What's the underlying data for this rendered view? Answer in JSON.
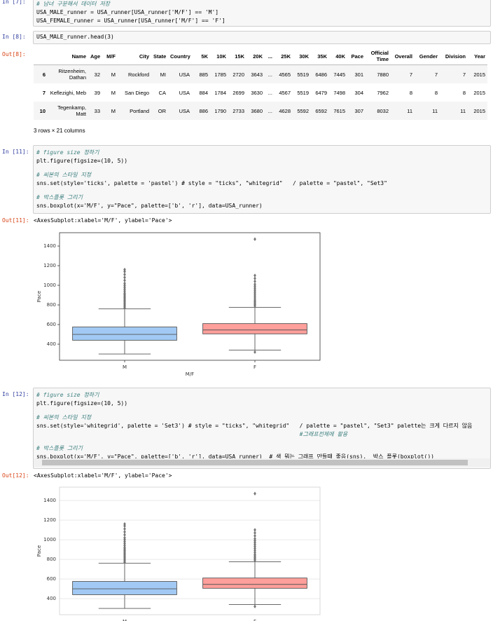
{
  "cells": [
    {
      "prompt": "In [7]:",
      "code": [
        [
          "# 남녀 구분해서 데이터 저장",
          "USA_MALE_runner = USA_runner[USA_runner['M/F'] == 'M']",
          "USA_FEMALE_runner = USA_runner[USA_runner['M/F'] == 'F']"
        ]
      ]
    },
    {
      "prompt": "In [8]:",
      "code": [
        [
          "USA_MALE_runner.head(3)"
        ]
      ],
      "out_prompt": "Out[8]:"
    },
    {
      "prompt": "In [11]:",
      "code": [
        [
          "# figure size 정하기",
          "plt.figure(figsize=(10, 5))"
        ],
        [
          "# 씨본의 스타일 지정",
          "sns.set(style='ticks', palette = 'pastel') # style = \"ticks\", \"whitegrid\"   / palette = \"pastel\", \"Set3\""
        ],
        [
          "# 박스플롯 그리기",
          "sns.boxplot(x='M/F', y=\"Pace\", palette=['b', 'r'], data=USA_runner)"
        ]
      ],
      "out_prompt": "Out[11]:",
      "out_text": "<AxesSubplot:xlabel='M/F', ylabel='Pace'>"
    },
    {
      "prompt": "In [12]:",
      "code": [
        [
          "# figure size 정하기",
          "plt.figure(figsize=(10, 5))"
        ],
        [
          "# 씨본의 스타일 지정",
          "sns.set(style='whitegrid', palette = 'Set3') # style = \"ticks\", \"whitegrid\"   / palette = \"pastel\", \"Set3\" palette는 크게 다르지 않음",
          "                                                                              #그래프전체에 활용"
        ],
        [
          "# 박스플롯 그리기",
          "sns.boxplot(x='M/F', y=\"Pace\", palette=['b', 'r'], data=USA_runner)  # 색 뭐는 그래프 만들때 좋음(sns),  박스 플롯(boxplot())"
        ]
      ],
      "out_prompt": "Out[12]:",
      "out_text": "<AxesSubplot:xlabel='M/F', ylabel='Pace'>"
    }
  ],
  "table": {
    "columns": [
      "Name",
      "Age",
      "M/F",
      "City",
      "State",
      "Country",
      "5K",
      "10K",
      "15K",
      "20K",
      "...",
      "25K",
      "30K",
      "35K",
      "40K",
      "Pace",
      "Official Time",
      "Overall",
      "Gender",
      "Division",
      "Year"
    ],
    "rows": [
      {
        "index": 6,
        "cells": [
          "Ritzenheim, Dathan",
          32,
          "M",
          "Rockford",
          "MI",
          "USA",
          885,
          1785,
          2720,
          3643,
          "...",
          4565,
          5519,
          6486,
          7445,
          301,
          7880,
          7,
          7,
          7,
          2015
        ]
      },
      {
        "index": 7,
        "cells": [
          "Keflezighi, Meb",
          39,
          "M",
          "San Diego",
          "CA",
          "USA",
          884,
          1784,
          2699,
          3630,
          "...",
          4567,
          5519,
          6479,
          7498,
          304,
          7962,
          8,
          8,
          8,
          2015
        ]
      },
      {
        "index": 10,
        "cells": [
          "Tegenkamp, Matt",
          33,
          "M",
          "Portland",
          "OR",
          "USA",
          886,
          1790,
          2733,
          3680,
          "...",
          4628,
          5592,
          6592,
          7615,
          307,
          8032,
          11,
          11,
          11,
          2015
        ]
      }
    ],
    "footer": "3 rows × 21 columns"
  },
  "chart_data": [
    {
      "type": "box",
      "xlabel": "M/F",
      "ylabel": "Pace",
      "categories": [
        "M",
        "F"
      ],
      "colors": [
        "#a1c9f4",
        "#ff9f9b"
      ],
      "grid": false,
      "ylim": [
        236,
        1536
      ],
      "yticks": [
        400,
        600,
        800,
        1000,
        1200,
        1400
      ],
      "boxes": [
        {
          "whislo": 300,
          "q1": 440,
          "med": 500,
          "q3": 575,
          "whishi": 760,
          "fliers": [
            770,
            785,
            800,
            815,
            830,
            845,
            860,
            875,
            890,
            905,
            920,
            940,
            960,
            980,
            1000,
            1020,
            1050,
            1080,
            1110,
            1140,
            1160
          ]
        },
        {
          "whislo": 340,
          "q1": 505,
          "med": 545,
          "q3": 610,
          "whishi": 775,
          "fliers": [
            320,
            790,
            805,
            820,
            835,
            850,
            870,
            890,
            910,
            930,
            950,
            970,
            990,
            1010,
            1040,
            1070,
            1100,
            1470
          ]
        }
      ]
    },
    {
      "type": "box",
      "ylabel": "Pace",
      "categories": [
        "M",
        "F"
      ],
      "colors": [
        "#a1c9f4",
        "#ff9f9b"
      ],
      "grid": true,
      "ylim": [
        236,
        1536
      ],
      "yticks": [
        400,
        600,
        800,
        1000,
        1200,
        1400
      ],
      "boxes": [
        {
          "whislo": 300,
          "q1": 440,
          "med": 500,
          "q3": 575,
          "whishi": 760,
          "fliers": [
            770,
            785,
            800,
            815,
            830,
            845,
            860,
            875,
            890,
            905,
            920,
            940,
            960,
            980,
            1000,
            1020,
            1050,
            1080,
            1110,
            1140,
            1160
          ]
        },
        {
          "whislo": 340,
          "q1": 505,
          "med": 545,
          "q3": 610,
          "whishi": 775,
          "fliers": [
            320,
            790,
            805,
            820,
            835,
            850,
            870,
            890,
            910,
            930,
            950,
            970,
            990,
            1010,
            1040,
            1070,
            1100,
            1470
          ]
        }
      ]
    }
  ]
}
